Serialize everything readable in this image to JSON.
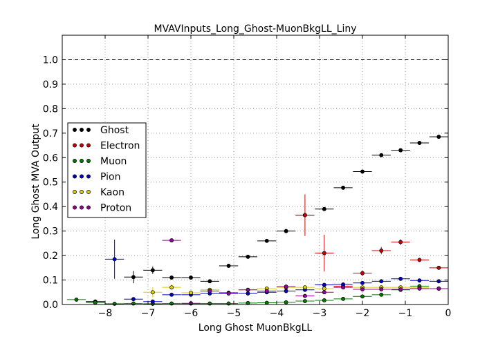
{
  "chart_data": {
    "type": "scatter",
    "title": "MVAVInputs_Long_Ghost-MuonBkgLL_Liny",
    "xlabel": "Long Ghost MuonBkgLL",
    "ylabel": "Long Ghost MVA Output",
    "xlim": [
      -9.0,
      0.0
    ],
    "ylim": [
      0.0,
      1.1
    ],
    "x_ticks": [
      -8,
      -7,
      -6,
      -5,
      -4,
      -3,
      -2,
      -1,
      0
    ],
    "x_tick_labels": [
      "−8",
      "−7",
      "−6",
      "−5",
      "−4",
      "−3",
      "−2",
      "−1",
      "0"
    ],
    "y_ticks": [
      0.0,
      0.1,
      0.2,
      0.3,
      0.4,
      0.5,
      0.6,
      0.7,
      0.8,
      0.9,
      1.0
    ],
    "y_tick_labels": [
      "0.0",
      "0.1",
      "0.2",
      "0.3",
      "0.4",
      "0.5",
      "0.6",
      "0.7",
      "0.8",
      "0.9",
      "1.0"
    ],
    "grid": true,
    "reference_line": 1.0,
    "legend_position": "center-left",
    "bin_half_width": 0.22,
    "series": [
      {
        "name": "Ghost",
        "color": "#000000",
        "x": [
          -8.23,
          -7.34,
          -6.89,
          -6.45,
          -6.0,
          -5.56,
          -5.12,
          -4.67,
          -4.23,
          -3.78,
          -3.34,
          -2.89,
          -2.45,
          -2.0,
          -1.56,
          -1.11,
          -0.67,
          -0.22
        ],
        "y": [
          0.012,
          0.112,
          0.14,
          0.11,
          0.11,
          0.095,
          0.158,
          0.195,
          0.26,
          0.3,
          0.365,
          0.39,
          0.477,
          0.543,
          0.61,
          0.63,
          0.66,
          0.685
        ],
        "yerr": [
          0.005,
          0.025,
          0.015,
          0.008,
          0.006,
          0.005,
          0.004,
          0.004,
          0.004,
          0.004,
          0.004,
          0.004,
          0.004,
          0.004,
          0.004,
          0.004,
          0.004,
          0.004
        ]
      },
      {
        "name": "Electron",
        "color": "#cc0000",
        "x": [
          -3.34,
          -2.89,
          -2.45,
          -2.0,
          -1.56,
          -1.11,
          -0.67,
          -0.22
        ],
        "y": [
          0.365,
          0.21,
          0.075,
          0.128,
          0.22,
          0.255,
          0.182,
          0.15
        ],
        "yerr": [
          0.085,
          0.075,
          0.01,
          0.01,
          0.015,
          0.012,
          0.006,
          0.005
        ]
      },
      {
        "name": "Muon",
        "color": "#007700",
        "x": [
          -8.67,
          -8.23,
          -7.78,
          -7.34,
          -6.89,
          -6.45,
          -6.0,
          -5.56,
          -5.12,
          -4.67,
          -4.23,
          -3.78,
          -3.34,
          -2.89,
          -2.45,
          -2.0,
          -1.56,
          -1.11,
          -0.67,
          -0.22
        ],
        "y": [
          0.02,
          0.008,
          0.003,
          0.004,
          0.003,
          0.004,
          0.004,
          0.004,
          0.004,
          0.006,
          0.007,
          0.009,
          0.014,
          0.017,
          0.023,
          0.033,
          0.04,
          0.06,
          0.075,
          0.065
        ],
        "yerr": [
          0.003,
          0.002,
          0.001,
          0.001,
          0.001,
          0.001,
          0.001,
          0.001,
          0.001,
          0.001,
          0.001,
          0.001,
          0.001,
          0.001,
          0.001,
          0.002,
          0.002,
          0.002,
          0.002,
          0.002
        ]
      },
      {
        "name": "Pion",
        "color": "#0000cc",
        "x": [
          -7.78,
          -7.34,
          -6.89,
          -6.45,
          -6.0,
          -5.56,
          -5.12,
          -4.67,
          -4.23,
          -3.78,
          -3.34,
          -2.89,
          -2.45,
          -2.0,
          -1.56,
          -1.11,
          -0.67,
          -0.22
        ],
        "y": [
          0.185,
          0.022,
          0.012,
          0.04,
          0.04,
          0.045,
          0.048,
          0.045,
          0.05,
          0.055,
          0.06,
          0.08,
          0.082,
          0.088,
          0.095,
          0.105,
          0.098,
          0.095
        ],
        "yerr": [
          0.08,
          0.006,
          0.004,
          0.003,
          0.002,
          0.002,
          0.002,
          0.002,
          0.002,
          0.002,
          0.002,
          0.002,
          0.002,
          0.002,
          0.002,
          0.002,
          0.002,
          0.002
        ]
      },
      {
        "name": "Kaon",
        "color": "#ddcc00",
        "x": [
          -6.89,
          -6.45,
          -6.0,
          -5.56,
          -5.12,
          -4.67,
          -4.23,
          -3.78,
          -3.34,
          -2.89,
          -2.45,
          -2.0,
          -1.56,
          -1.11,
          -0.67,
          -0.22
        ],
        "y": [
          0.05,
          0.07,
          0.048,
          0.06,
          0.045,
          0.06,
          0.065,
          0.07,
          0.07,
          0.065,
          0.07,
          0.07,
          0.07,
          0.07,
          0.068,
          0.065
        ],
        "yerr": [
          0.02,
          0.012,
          0.006,
          0.004,
          0.003,
          0.003,
          0.003,
          0.003,
          0.003,
          0.003,
          0.003,
          0.003,
          0.003,
          0.003,
          0.003,
          0.003
        ]
      },
      {
        "name": "Proton",
        "color": "#990099",
        "x": [
          -6.45,
          -6.0,
          -5.56,
          -5.12,
          -4.67,
          -4.23,
          -3.78,
          -3.34,
          -2.89,
          -2.45,
          -2.0,
          -1.56,
          -1.11,
          -0.67,
          -0.22
        ],
        "y": [
          0.262,
          0.005,
          0.055,
          0.045,
          0.06,
          0.055,
          0.073,
          0.035,
          0.05,
          0.07,
          0.062,
          0.062,
          0.062,
          0.065,
          0.065
        ],
        "yerr": [
          0.004,
          0.002,
          0.003,
          0.003,
          0.003,
          0.003,
          0.003,
          0.003,
          0.003,
          0.003,
          0.003,
          0.003,
          0.003,
          0.003,
          0.003
        ]
      }
    ]
  }
}
